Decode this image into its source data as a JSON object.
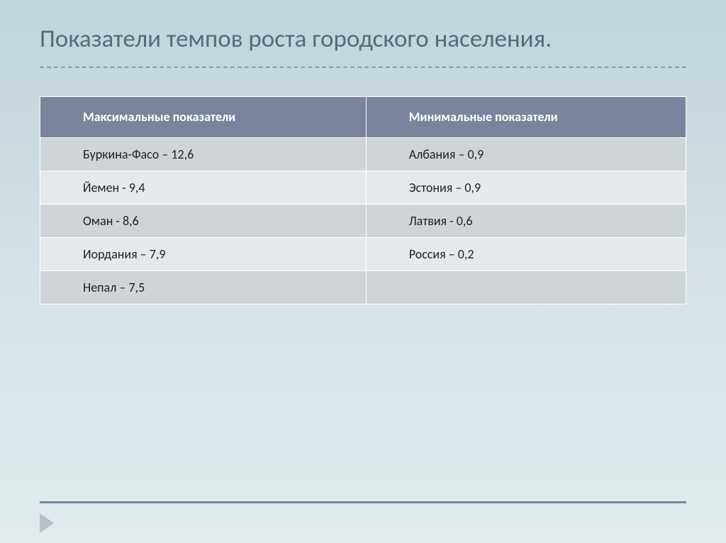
{
  "title": "Показатели темпов роста городского населения.",
  "table": {
    "headers": [
      "Максимальные показатели",
      "Минимальные показатели"
    ],
    "rows": [
      [
        "Буркина-Фасо – 12,6",
        "Албания – 0,9"
      ],
      [
        "Йемен  - 9,4",
        "Эстония – 0,9"
      ],
      [
        "Оман   - 8,6",
        "Латвия  - 0,6"
      ],
      [
        "Иордания – 7,9",
        "Россия – 0,2"
      ],
      [
        "Непал – 7,5",
        ""
      ]
    ],
    "header_bg": "#7a849c",
    "header_fg": "#ffffff",
    "row_odd_bg": "#ced4d8",
    "row_even_bg": "#e5e9ec",
    "border_color": "#ffffff",
    "font_size_pt": 14
  },
  "colors": {
    "title_fg": "#5a6a7a",
    "divider": "#8a98a5",
    "footer_rule": "#7a849c",
    "footer_arrow": "#b7c0c7",
    "bg_gradient_top": "#c0d4da",
    "bg_gradient_bottom": "#e2ecee"
  }
}
